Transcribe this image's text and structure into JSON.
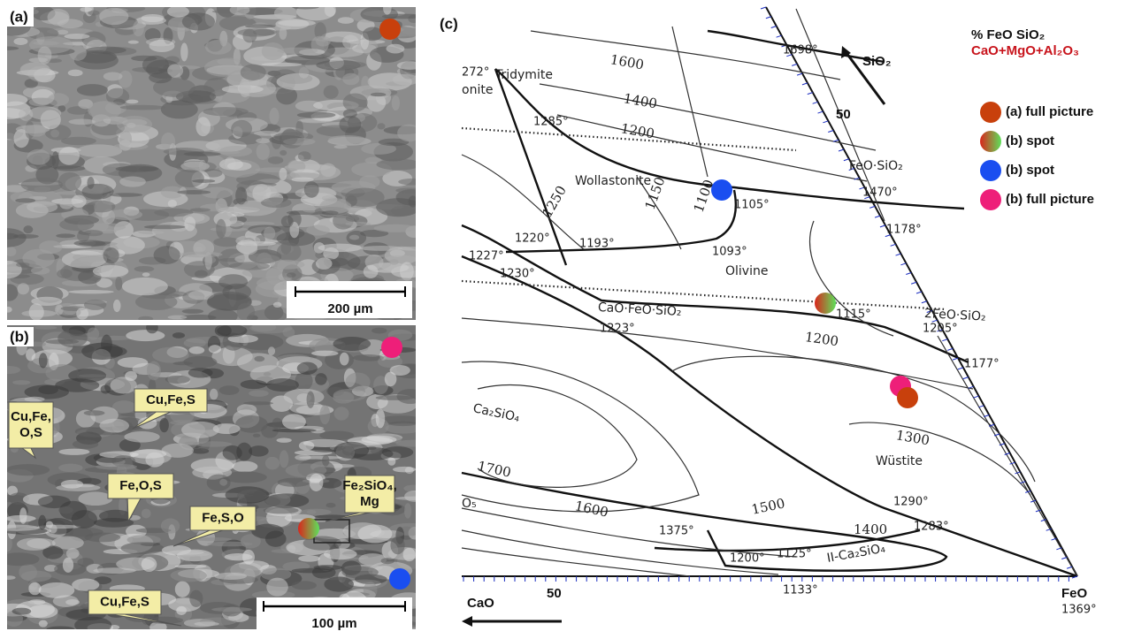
{
  "panels": [
    {
      "label": "(a)",
      "scale_bar": "200 µm"
    },
    {
      "label": "(b)",
      "scale_bar": "100 µm",
      "callouts": [
        [
          "Cu,Fe,",
          "O,S"
        ],
        [
          "Cu,Fe,S"
        ],
        [
          "Fe,O,S"
        ],
        [
          "Fe,S,O"
        ],
        [
          "Fe₂SiO₄,",
          "Mg"
        ],
        [
          "Cu,Fe,S"
        ]
      ]
    },
    {
      "label": "(c)",
      "legend": {
        "title": "% FeO SiO₂",
        "subtitle": "CaO+MgO+Al₂O₃",
        "items": [
          "(a) full picture",
          "(b) spot",
          "(b) spot",
          "(b) full picture"
        ]
      },
      "axes": [
        "SiO₂",
        "50",
        "CaO",
        "50",
        "FeO"
      ],
      "phases": [
        "Tridymite",
        "onite",
        "Wollastonite",
        "Olivine",
        "CaO·FeO·SiO₂",
        "2FeO·SiO₂",
        "FeO·SiO₂",
        "Ca₂SiO₄",
        "Wüstite",
        "II-Ca₂SiO₄",
        "O₅"
      ],
      "isotherms": [
        "1600",
        "1400",
        "1200",
        "1250",
        "1150",
        "1100",
        "1200",
        "1300",
        "1700",
        "1600",
        "1500",
        "1400"
      ],
      "temperatures": [
        "1698°",
        "272°",
        "1285°",
        "1105°",
        "1470°",
        "1178°",
        "1220°",
        "1193°",
        "1227°",
        "1093°",
        "1230°",
        "1223°",
        "1115°",
        "1205°",
        "1177°",
        "1290°",
        "1283°",
        "1375°",
        "1200°",
        "1125°",
        "1133°",
        "1369°"
      ]
    }
  ]
}
